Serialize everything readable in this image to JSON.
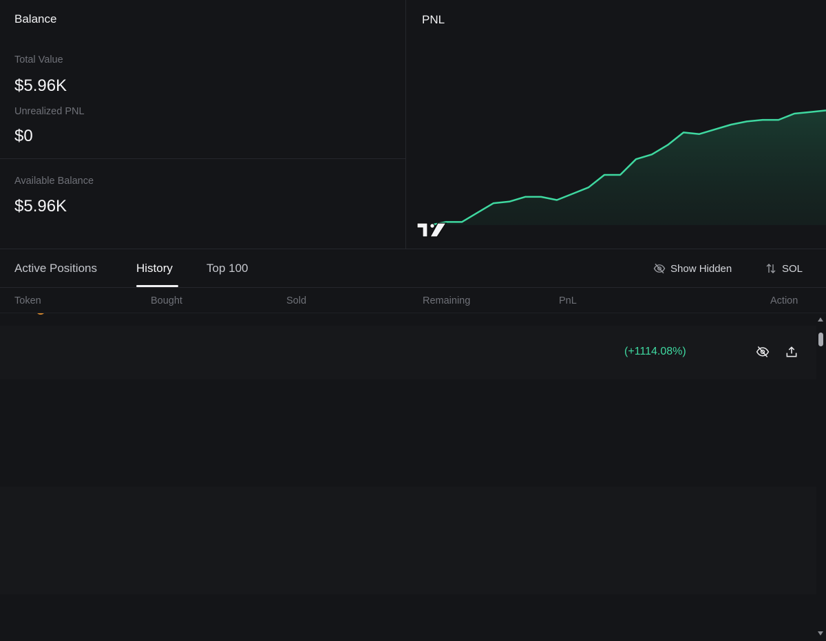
{
  "balance": {
    "title": "Balance",
    "total_value_label": "Total Value",
    "total_value": "$5.96K",
    "unrealized_pnl_label": "Unrealized PNL",
    "unrealized_pnl": "$0",
    "available_balance_label": "Available Balance",
    "available_balance": "$5.96K"
  },
  "pnl": {
    "title": "PNL",
    "line_color": "#3fd8a0",
    "watermark_icon": "tradingview-logo-icon"
  },
  "chart_data": {
    "type": "area",
    "title": "PNL",
    "xlabel": "",
    "ylabel": "",
    "grid": false,
    "x": [
      0,
      1,
      2,
      3,
      4,
      5,
      6,
      7,
      8,
      9,
      10,
      11,
      12,
      13,
      14,
      15,
      16,
      17,
      18,
      19,
      20,
      21,
      22,
      23,
      24,
      25
    ],
    "series": [
      {
        "values": [
          0,
          2,
          2,
          8,
          14,
          15,
          18,
          18,
          16,
          20,
          24,
          32,
          32,
          42,
          45,
          51,
          59,
          58,
          61,
          64,
          66,
          67,
          67,
          71,
          72,
          73
        ]
      }
    ],
    "ylim": [
      0,
      110
    ]
  },
  "tabs": [
    {
      "label": "Active Positions"
    },
    {
      "label": "History"
    },
    {
      "label": "Top 100"
    }
  ],
  "active_tab": "History",
  "controls": {
    "show_hidden_label": "Show Hidden",
    "currency_label": "SOL"
  },
  "table": {
    "columns": [
      "Token",
      "Bought",
      "Sold",
      "Remaining",
      "PnL",
      "Action"
    ],
    "rows": [
      {
        "pnl_percent": "(+1114.08%)"
      }
    ]
  }
}
